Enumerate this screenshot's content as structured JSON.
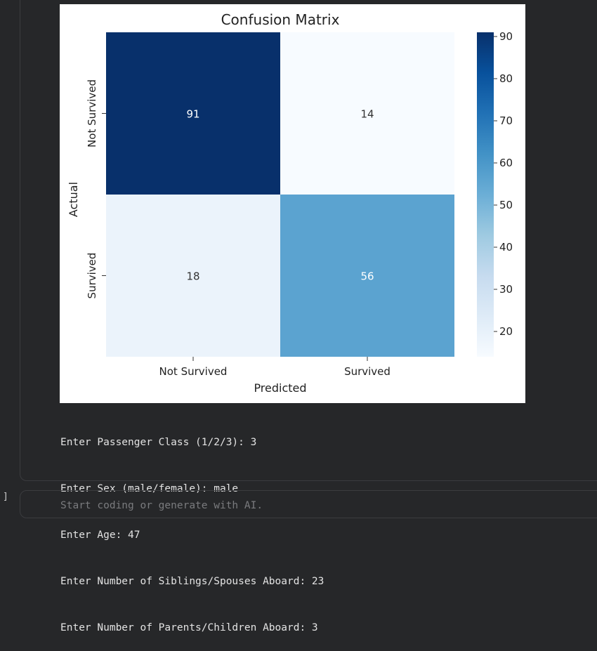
{
  "notebook": {
    "execution_bracket": "]",
    "next_cell_placeholder": "Start coding or generate with AI."
  },
  "stdout_lines": [
    "Enter Passenger Class (1/2/3): 3",
    "Enter Sex (male/female): male",
    "Enter Age: 47",
    "Enter Number of Siblings/Spouses Aboard: 23",
    "Enter Number of Parents/Children Aboard: 3"
  ],
  "chart_data": {
    "type": "heatmap",
    "title": "Confusion Matrix",
    "xlabel": "Predicted",
    "ylabel": "Actual",
    "x_categories": [
      "Not Survived",
      "Survived"
    ],
    "y_categories": [
      "Not Survived",
      "Survived"
    ],
    "values": [
      [
        91,
        14
      ],
      [
        18,
        56
      ]
    ],
    "colormap": "Blues",
    "colorbar": {
      "min": 14,
      "max": 91,
      "ticks": [
        20,
        30,
        40,
        50,
        60,
        70,
        80,
        90
      ]
    },
    "cell_colors": [
      [
        "#08306b",
        "#f7fbff"
      ],
      [
        "#ebf3fb",
        "#5ba3d0"
      ]
    ],
    "annotation_colors": [
      [
        "#ffffff",
        "#333333"
      ],
      [
        "#333333",
        "#ffffff"
      ]
    ]
  }
}
